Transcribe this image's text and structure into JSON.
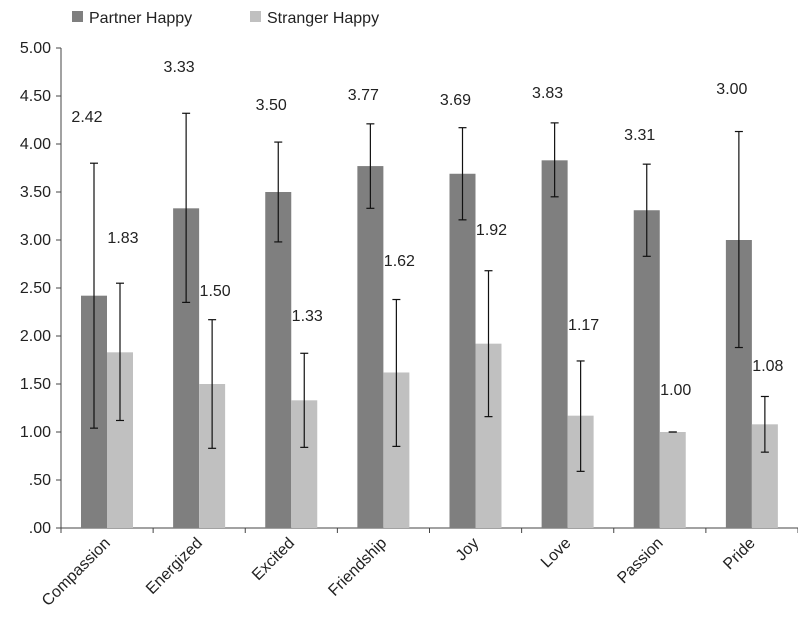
{
  "chart_data": {
    "type": "bar",
    "categories": [
      "Compassion",
      "Energized",
      "Excited",
      "Friendship",
      "Joy",
      "Love",
      "Passion",
      "Pride"
    ],
    "series": [
      {
        "name": "Partner Happy",
        "color": "#7f7f7f",
        "values": [
          2.42,
          3.33,
          3.5,
          3.77,
          3.69,
          3.83,
          3.31,
          3.0
        ],
        "labels": [
          "2.42",
          "3.33",
          "3.50",
          "3.77",
          "3.69",
          "3.83",
          "3.31",
          "3.00"
        ],
        "error_low": [
          1.04,
          2.35,
          2.98,
          3.33,
          3.21,
          3.45,
          2.83,
          1.88
        ],
        "error_high": [
          3.8,
          4.32,
          4.02,
          4.21,
          4.17,
          4.22,
          3.79,
          4.13
        ]
      },
      {
        "name": "Stranger Happy",
        "color": "#c0c0c0",
        "values": [
          1.83,
          1.5,
          1.33,
          1.62,
          1.92,
          1.17,
          1.0,
          1.08
        ],
        "labels": [
          "1.83",
          "1.50",
          "1.33",
          "1.62",
          "1.92",
          "1.17",
          "1.00",
          "1.08"
        ],
        "error_low": [
          1.12,
          0.83,
          0.84,
          0.85,
          1.16,
          0.59,
          1.0,
          0.79
        ],
        "error_high": [
          2.55,
          2.17,
          1.82,
          2.38,
          2.68,
          1.74,
          1.0,
          1.37
        ]
      }
    ],
    "y_ticks": [
      ".00",
      ".50",
      "1.00",
      "1.50",
      "2.00",
      "2.50",
      "3.00",
      "3.50",
      "4.00",
      "4.50",
      "5.00"
    ],
    "ylim": [
      0,
      5
    ],
    "title": "",
    "xlabel": "",
    "ylabel": "",
    "legend_position": "top-left",
    "grid": false
  }
}
